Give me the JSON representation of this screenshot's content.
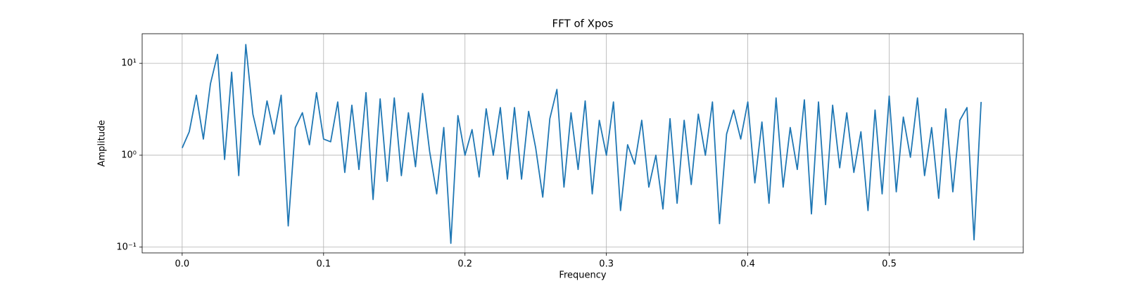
{
  "chart_data": {
    "type": "line",
    "title": "FFT of Xpos",
    "x_label": "Frequency",
    "y_label": "Amplitude",
    "x": [
      0,
      0.005,
      0.01,
      0.015,
      0.02,
      0.025,
      0.03,
      0.035,
      0.04,
      0.045,
      0.05,
      0.055,
      0.06,
      0.065,
      0.07,
      0.075,
      0.08,
      0.085,
      0.09,
      0.095,
      0.1,
      0.105,
      0.11,
      0.115,
      0.12,
      0.125,
      0.13,
      0.135,
      0.14,
      0.145,
      0.15,
      0.155,
      0.16,
      0.165,
      0.17,
      0.175,
      0.18,
      0.185,
      0.19,
      0.195,
      0.2,
      0.205,
      0.21,
      0.215,
      0.22,
      0.225,
      0.23,
      0.235,
      0.24,
      0.245,
      0.25,
      0.255,
      0.26,
      0.265,
      0.27,
      0.275,
      0.28,
      0.285,
      0.29,
      0.295,
      0.3,
      0.305,
      0.31,
      0.315,
      0.32,
      0.325,
      0.33,
      0.335,
      0.34,
      0.345,
      0.35,
      0.355,
      0.36,
      0.365,
      0.37,
      0.375,
      0.38,
      0.385,
      0.39,
      0.395,
      0.4,
      0.405,
      0.41,
      0.415,
      0.42,
      0.425,
      0.43,
      0.435,
      0.44,
      0.445,
      0.45,
      0.455,
      0.46,
      0.465,
      0.47,
      0.475,
      0.48,
      0.485,
      0.49,
      0.495,
      0.5,
      0.505,
      0.51,
      0.515,
      0.52,
      0.525,
      0.53,
      0.535,
      0.54,
      0.545,
      0.55,
      0.555,
      0.56,
      0.565
    ],
    "values": [
      1.2,
      1.8,
      4.5,
      1.5,
      6.0,
      12.5,
      0.9,
      8.0,
      0.6,
      16,
      2.8,
      1.3,
      3.9,
      1.7,
      4.5,
      0.17,
      2.0,
      2.9,
      1.3,
      4.8,
      1.5,
      1.4,
      3.8,
      0.65,
      3.5,
      0.7,
      4.8,
      0.33,
      4.1,
      0.52,
      4.2,
      0.6,
      2.9,
      0.75,
      4.7,
      1.1,
      0.38,
      2.0,
      0.11,
      2.7,
      1.0,
      1.9,
      0.58,
      3.2,
      1.0,
      3.3,
      0.55,
      3.3,
      0.55,
      3.0,
      1.2,
      0.35,
      2.5,
      5.2,
      0.45,
      2.9,
      0.7,
      3.9,
      0.38,
      2.4,
      1.0,
      3.8,
      0.25,
      1.3,
      0.8,
      2.4,
      0.45,
      1.0,
      0.26,
      2.5,
      0.3,
      2.4,
      0.48,
      2.8,
      1.0,
      3.8,
      0.18,
      1.7,
      3.1,
      1.5,
      3.8,
      0.5,
      2.3,
      0.3,
      4.2,
      0.45,
      2.0,
      0.7,
      4.0,
      0.23,
      3.8,
      0.29,
      3.5,
      0.73,
      2.9,
      0.65,
      1.8,
      0.25,
      3.1,
      0.38,
      4.4,
      0.4,
      2.6,
      0.95,
      4.2,
      0.6,
      2.0,
      0.34,
      3.2,
      0.4,
      2.4,
      3.3,
      0.12,
      3.8
    ],
    "color": "#1f77b4",
    "xlim": [
      -0.0283,
      0.5948
    ],
    "xticks": [
      {
        "value": 0,
        "label": "0.0"
      },
      0.1,
      0.2,
      0.3,
      0.4,
      0.5
    ],
    "ylim": [
      0.0865,
      21
    ],
    "yticks": [
      {
        "value": 0.1,
        "label": "10⁻¹"
      },
      {
        "value": 1,
        "label": "10⁰"
      },
      {
        "value": 10,
        "label": "10¹"
      }
    ],
    "y_scale": "log",
    "grid": true
  }
}
